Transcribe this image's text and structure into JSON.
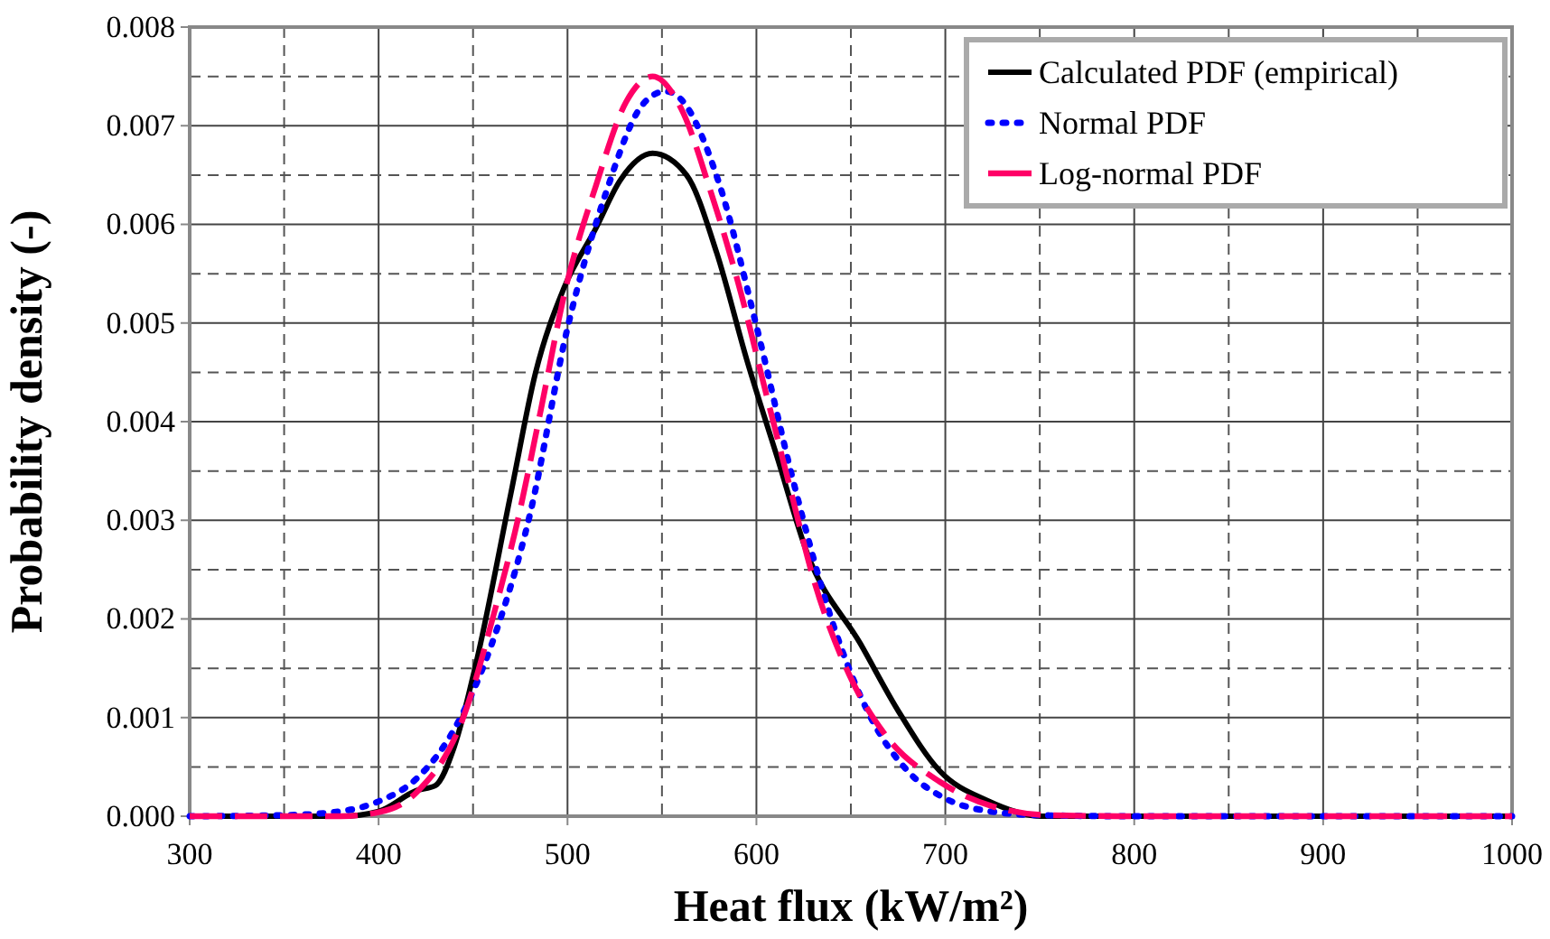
{
  "chart_data": {
    "type": "line",
    "xlabel": "Heat flux (kW/m²)",
    "ylabel": "Probability density (-)",
    "xlim": [
      300,
      1000
    ],
    "xticks": [
      300,
      400,
      500,
      600,
      700,
      800,
      900,
      1000
    ],
    "ylim": [
      0,
      0.008
    ],
    "yticks": [
      {
        "value": 0,
        "label": "0.000"
      },
      {
        "value": 0.001,
        "label": "0.001"
      },
      {
        "value": 0.002,
        "label": "0.002"
      },
      {
        "value": 0.003,
        "label": "0.003"
      },
      {
        "value": 0.004,
        "label": "0.004"
      },
      {
        "value": 0.005,
        "label": "0.005"
      },
      {
        "value": 0.006,
        "label": "0.006"
      },
      {
        "value": 0.007,
        "label": "0.007"
      },
      {
        "value": 0.008,
        "label": "0.008"
      }
    ],
    "grid": true,
    "legend": "top right",
    "marker": "none",
    "series": [
      {
        "name": "Calculated PDF (empirical)",
        "color": "#000000",
        "line_style": "solid",
        "x": [
          300,
          380,
          400,
          420,
          430,
          440,
          451,
          470,
          483,
          498,
          515,
          528,
          545,
          563,
          579,
          595,
          611,
          627,
          655,
          675,
          697,
          722,
          751,
          800,
          1000
        ],
        "values": [
          0,
          0,
          5e-05,
          0.00026,
          0.00031,
          0.0007,
          0.0015,
          0.00327,
          0.00449,
          0.00535,
          0.00596,
          0.00645,
          0.00672,
          0.0065,
          0.00571,
          0.00462,
          0.00364,
          0.00266,
          0.00175,
          0.00107,
          0.00046,
          0.00016,
          0,
          0,
          0
        ]
      },
      {
        "name": "Normal PDF",
        "color": "#0000ff",
        "line_style": "dotted",
        "x": [
          300,
          350,
          380,
          400,
          420,
          440,
          460,
          480,
          500,
          520,
          540,
          552,
          560,
          580,
          600,
          620,
          640,
          660,
          680,
          700,
          720,
          750,
          800,
          1000
        ],
        "values": [
          0,
          1e-05,
          5e-05,
          0.00015,
          0.00038,
          0.00088,
          0.00175,
          0.00305,
          0.00495,
          0.0063,
          0.00722,
          0.00735,
          0.00727,
          0.00643,
          0.00497,
          0.00336,
          0.00198,
          0.00102,
          0.00046,
          0.00018,
          6e-05,
          1e-05,
          0,
          0
        ]
      },
      {
        "name": "Log-normal PDF",
        "color": "#ff0066",
        "line_style": "dashed",
        "x": [
          300,
          380,
          400,
          420,
          445,
          461,
          474,
          486,
          499,
          515,
          531,
          545,
          560,
          576,
          592,
          604,
          617,
          630,
          649,
          668,
          697,
          725,
          755,
          800,
          1000
        ],
        "values": [
          0,
          0,
          4e-05,
          0.00024,
          0.00101,
          0.00205,
          0.00303,
          0.00413,
          0.00535,
          0.00639,
          0.00724,
          0.0075,
          0.00718,
          0.00632,
          0.00529,
          0.00437,
          0.00339,
          0.00242,
          0.00144,
          0.00083,
          0.00035,
          0.0001,
          1e-05,
          0,
          0
        ]
      }
    ]
  }
}
